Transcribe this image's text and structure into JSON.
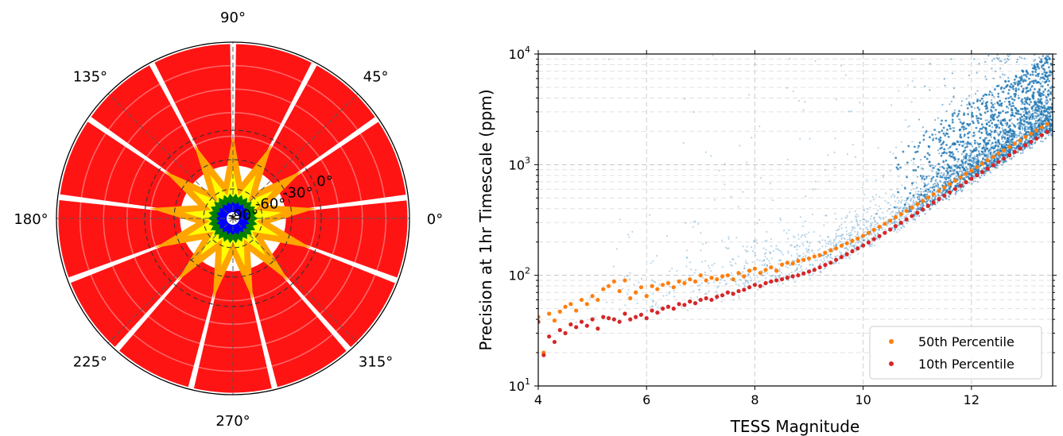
{
  "chart_data": [
    {
      "type": "scatter",
      "projection": "polar",
      "angle_tick_labels": [
        "0°",
        "45°",
        "90°",
        "135°",
        "180°",
        "225°",
        "270°",
        "315°"
      ],
      "radial_tick_labels": [
        "0°",
        "-30°",
        "-60°",
        "-90°"
      ],
      "radial_ticks": [
        0,
        -30,
        -60,
        -90
      ],
      "grid": true,
      "colors": {
        "outer": "#ff0000",
        "mid": "#ffa500",
        "inner": "#ffff00",
        "green": "#008000",
        "core": "#0000ff"
      },
      "ecliptic_latitude_bands": [
        {
          "color": "#ff0000",
          "lat_min": -6,
          "lat_max": 90
        },
        {
          "color": "#ffa500",
          "lat_min": -54,
          "lat_max": -6
        },
        {
          "color": "#ffff00",
          "lat_min": -78,
          "lat_max": -54
        },
        {
          "color": "#008000",
          "lat_min": -82,
          "lat_max": -78
        },
        {
          "color": "#0000ff",
          "lat_min": -90,
          "lat_max": -82
        }
      ],
      "sector_count": 13
    },
    {
      "type": "scatter",
      "xlabel": "TESS Magnitude",
      "ylabel": "Precision at 1hr Timescale (ppm)",
      "xlim": [
        4,
        13.5
      ],
      "ylim": [
        10,
        10000
      ],
      "yscale": "log",
      "x_ticks": [
        4,
        6,
        8,
        10,
        12
      ],
      "y_ticks": [
        10,
        100,
        1000,
        10000
      ],
      "y_tick_labels": {
        "base": "10",
        "exponents": [
          "1",
          "2",
          "3",
          "4"
        ]
      },
      "grid": true,
      "legend_position": "lower-right",
      "colors": {
        "stars": "#1f77b4",
        "p50": "#ff7f0e",
        "p10": "#d62728"
      },
      "series": [
        {
          "name": "50th Percentile",
          "color": "#ff7f0e",
          "x": [
            4.0,
            4.1,
            4.2,
            4.3,
            4.4,
            4.5,
            4.6,
            4.7,
            4.8,
            4.9,
            5.0,
            5.1,
            5.2,
            5.3,
            5.4,
            5.5,
            5.6,
            5.7,
            5.8,
            5.9,
            6.0,
            6.1,
            6.2,
            6.3,
            6.4,
            6.5,
            6.6,
            6.7,
            6.8,
            6.9,
            7.0,
            7.1,
            7.2,
            7.3,
            7.4,
            7.5,
            7.6,
            7.7,
            7.8,
            7.9,
            8.0,
            8.1,
            8.2,
            8.3,
            8.4,
            8.5,
            8.6,
            8.7,
            8.8,
            8.9,
            9.0,
            9.1,
            9.2,
            9.3,
            9.4,
            9.5,
            9.6,
            9.7,
            9.8,
            9.9,
            10.0,
            10.1,
            10.2,
            10.3,
            10.4,
            10.5,
            10.6,
            10.7,
            10.8,
            10.9,
            11.0,
            11.1,
            11.2,
            11.3,
            11.4,
            11.5,
            11.6,
            11.7,
            11.8,
            11.9,
            12.0,
            12.1,
            12.2,
            12.3,
            12.4,
            12.5,
            12.6,
            12.7,
            12.8,
            12.9,
            13.0,
            13.1,
            13.2,
            13.3,
            13.4
          ],
          "values": [
            42,
            20,
            45,
            39,
            47,
            52,
            55,
            48,
            60,
            55,
            65,
            60,
            75,
            80,
            88,
            72,
            90,
            62,
            70,
            78,
            65,
            80,
            75,
            82,
            85,
            78,
            88,
            85,
            92,
            88,
            100,
            90,
            95,
            92,
            98,
            100,
            92,
            105,
            98,
            110,
            115,
            105,
            112,
            118,
            110,
            125,
            130,
            128,
            135,
            138,
            142,
            148,
            152,
            160,
            168,
            175,
            185,
            195,
            205,
            215,
            228,
            242,
            258,
            275,
            292,
            312,
            335,
            358,
            382,
            410,
            440,
            470,
            505,
            540,
            580,
            622,
            668,
            715,
            768,
            825,
            885,
            950,
            1020,
            1095,
            1175,
            1260,
            1350,
            1445,
            1550,
            1660,
            1780,
            1905,
            2040,
            2180,
            2330
          ]
        },
        {
          "name": "10th Percentile",
          "color": "#d62728",
          "x": [
            4.0,
            4.1,
            4.2,
            4.3,
            4.4,
            4.5,
            4.6,
            4.7,
            4.8,
            4.9,
            5.0,
            5.1,
            5.2,
            5.3,
            5.4,
            5.5,
            5.6,
            5.7,
            5.8,
            5.9,
            6.0,
            6.1,
            6.2,
            6.3,
            6.4,
            6.5,
            6.6,
            6.7,
            6.8,
            6.9,
            7.0,
            7.1,
            7.2,
            7.3,
            7.4,
            7.5,
            7.6,
            7.7,
            7.8,
            7.9,
            8.0,
            8.1,
            8.2,
            8.3,
            8.4,
            8.5,
            8.6,
            8.7,
            8.8,
            8.9,
            9.0,
            9.1,
            9.2,
            9.3,
            9.4,
            9.5,
            9.6,
            9.7,
            9.8,
            9.9,
            10.0,
            10.1,
            10.2,
            10.3,
            10.4,
            10.5,
            10.6,
            10.7,
            10.8,
            10.9,
            11.0,
            11.1,
            11.2,
            11.3,
            11.4,
            11.5,
            11.6,
            11.7,
            11.8,
            11.9,
            12.0,
            12.1,
            12.2,
            12.3,
            12.4,
            12.5,
            12.6,
            12.7,
            12.8,
            12.9,
            13.0,
            13.1,
            13.2,
            13.3,
            13.4
          ],
          "values": [
            38,
            19,
            28,
            25,
            32,
            30,
            36,
            34,
            38,
            35,
            40,
            33,
            42,
            41,
            40,
            38,
            45,
            40,
            42,
            44,
            41,
            48,
            46,
            50,
            52,
            50,
            55,
            54,
            58,
            56,
            60,
            62,
            60,
            64,
            66,
            70,
            68,
            72,
            74,
            78,
            82,
            80,
            85,
            88,
            90,
            92,
            95,
            98,
            100,
            104,
            108,
            112,
            118,
            124,
            130,
            138,
            146,
            155,
            165,
            175,
            186,
            198,
            212,
            226,
            242,
            259,
            278,
            298,
            320,
            343,
            368,
            395,
            424,
            455,
            488,
            524,
            562,
            603,
            647,
            694,
            745,
            800,
            858,
            920,
            987,
            1058,
            1135,
            1217,
            1305,
            1400,
            1500,
            1608,
            1722,
            1845,
            1975
          ]
        }
      ],
      "stars_sample_count": 2600
    }
  ]
}
